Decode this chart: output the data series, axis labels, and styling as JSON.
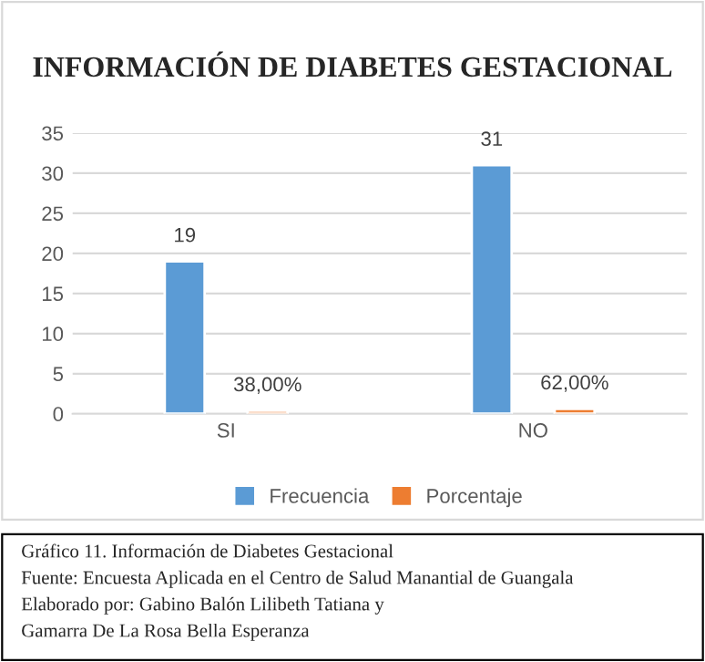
{
  "chart_data": {
    "type": "bar",
    "title": "INFORMACIÓN DE DIABETES GESTACIONAL",
    "categories": [
      "SI",
      "NO"
    ],
    "series": [
      {
        "name": "Frecuencia",
        "color": "#5b9bd5",
        "values": [
          19,
          31
        ],
        "value_labels": [
          "19",
          "31"
        ]
      },
      {
        "name": "Porcentaje",
        "color": "#ed7d31",
        "values": [
          0.38,
          0.62
        ],
        "value_labels": [
          "38,00%",
          "62,00%"
        ]
      }
    ],
    "ylim": [
      0,
      35
    ],
    "yticks": [
      0,
      5,
      10,
      15,
      20,
      25,
      30,
      35
    ],
    "grid": "y",
    "legend": "bottom",
    "annotations": [
      "Gráfico 11. Información de Diabetes Gestacional",
      "Fuente: Encuesta Aplicada en el Centro de Salud Manantial de Guangala",
      "Elaborado por: Gabino Balón Lilibeth Tatiana y",
      "Gamarra De La Rosa Bella Esperanza"
    ]
  }
}
